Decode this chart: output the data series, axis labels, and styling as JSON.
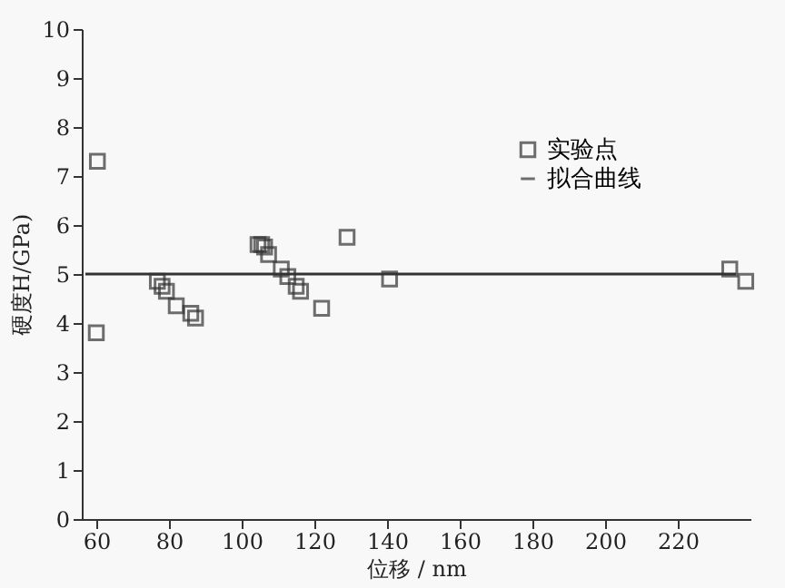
{
  "chart_data": {
    "type": "scatter",
    "xlabel": "位移 / nm",
    "ylabel": "硬度H/GPa)",
    "xlim": [
      56,
      240
    ],
    "ylim": [
      0,
      10
    ],
    "xticks": [
      60,
      80,
      100,
      120,
      140,
      160,
      180,
      200,
      220
    ],
    "yticks": [
      0,
      1,
      2,
      3,
      4,
      5,
      6,
      7,
      8,
      9,
      10
    ],
    "grid": false,
    "legend": "top right",
    "series": [
      {
        "name": "实验点",
        "color": "#333333",
        "marker": "square",
        "x": [
          60,
          60.3,
          76.8,
          78.1,
          79.3,
          82,
          86,
          87.3,
          104.5,
          105.5,
          106.3,
          107.4,
          110.9,
          112.7,
          115,
          116.2,
          122,
          129,
          140.7,
          234.3,
          238.7
        ],
        "values": [
          3.8,
          7.3,
          4.85,
          4.75,
          4.65,
          4.35,
          4.2,
          4.1,
          5.6,
          5.6,
          5.55,
          5.4,
          5.1,
          4.95,
          4.75,
          4.65,
          4.3,
          5.75,
          4.9,
          5.1,
          4.85
        ]
      },
      {
        "name": "拟合曲线",
        "type": "line",
        "color": "#333333",
        "x": [
          57,
          236
        ],
        "values": [
          5.0,
          5.0
        ]
      }
    ]
  }
}
